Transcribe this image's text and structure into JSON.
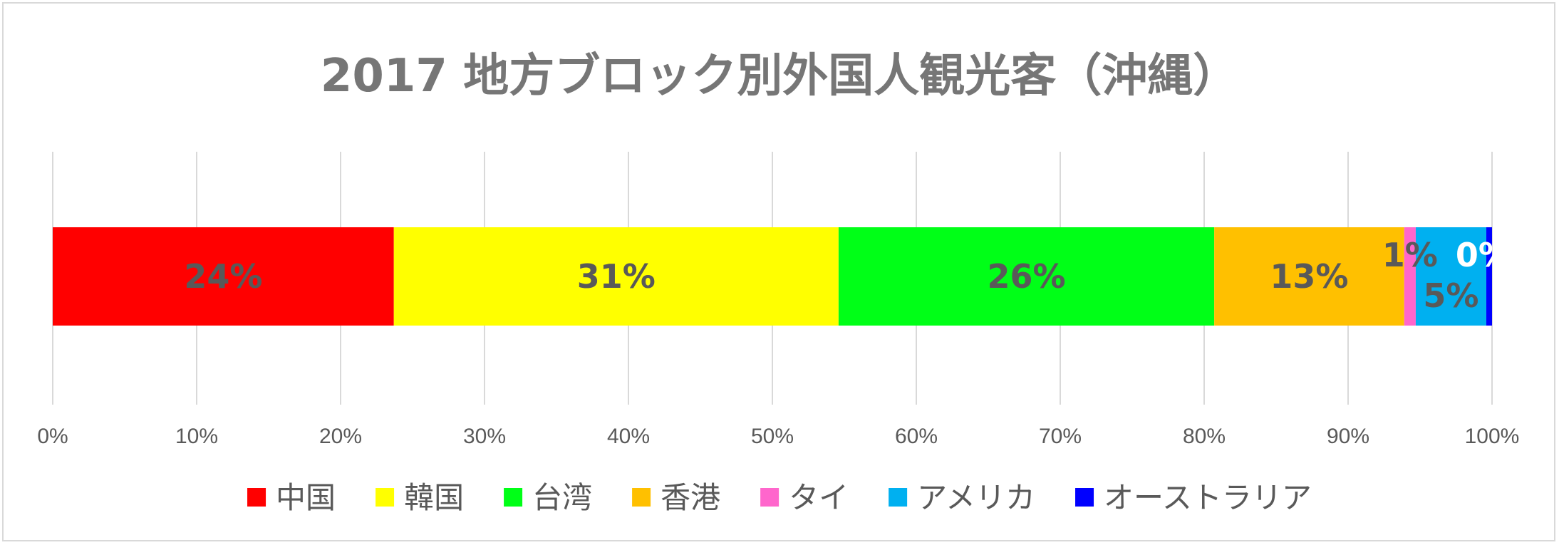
{
  "chart_data": {
    "type": "bar",
    "orientation": "horizontal",
    "stacked": "percent",
    "title": "2017 地方ブロック別外国人観光客（沖縄）",
    "xlim": [
      0,
      100
    ],
    "xticks": [
      "0%",
      "10%",
      "20%",
      "30%",
      "40%",
      "50%",
      "60%",
      "70%",
      "80%",
      "90%",
      "100%"
    ],
    "grid": true,
    "legend_position": "bottom",
    "series": [
      {
        "name": "中国",
        "value": 23.7,
        "label": "24%",
        "color": "#ff0000",
        "label_color": "#595959"
      },
      {
        "name": "韓国",
        "value": 30.9,
        "label": "31%",
        "color": "#ffff00",
        "label_color": "#595959"
      },
      {
        "name": "台湾",
        "value": 26.1,
        "label": "26%",
        "color": "#00ff17",
        "label_color": "#595959"
      },
      {
        "name": "香港",
        "value": 13.2,
        "label": "13%",
        "color": "#ffc000",
        "label_color": "#595959"
      },
      {
        "name": "タイ",
        "value": 0.8,
        "label": "1%",
        "color": "#ff66cc",
        "label_color": "#595959"
      },
      {
        "name": "アメリカ",
        "value": 4.9,
        "label": "5%",
        "color": "#00b0f0",
        "label_color": "#595959"
      },
      {
        "name": "オーストラリア",
        "value": 0.4,
        "label": "0%",
        "color": "#0000ff",
        "label_color": "#ffffff"
      }
    ]
  }
}
